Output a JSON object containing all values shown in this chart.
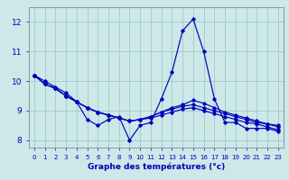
{
  "xlabel": "Graphe des températures (°c)",
  "background_color": "#cce8e8",
  "grid_color": "#aacccc",
  "line_color": "#0000bb",
  "hours": [
    0,
    1,
    2,
    3,
    4,
    5,
    6,
    7,
    8,
    9,
    10,
    11,
    12,
    13,
    14,
    15,
    16,
    17,
    18,
    19,
    20,
    21,
    22,
    23
  ],
  "series": [
    [
      10.2,
      10.0,
      9.8,
      9.6,
      9.3,
      8.7,
      8.5,
      8.7,
      8.8,
      8.0,
      8.5,
      8.6,
      9.4,
      10.3,
      11.7,
      12.1,
      11.0,
      9.4,
      8.6,
      8.6,
      8.4,
      8.4,
      8.4,
      8.3
    ],
    [
      10.2,
      9.9,
      9.75,
      9.5,
      9.3,
      9.1,
      8.95,
      8.85,
      8.75,
      8.65,
      8.7,
      8.8,
      8.95,
      9.1,
      9.2,
      9.35,
      9.25,
      9.1,
      8.95,
      8.85,
      8.75,
      8.65,
      8.55,
      8.5
    ],
    [
      10.2,
      9.9,
      9.75,
      9.5,
      9.3,
      9.1,
      8.95,
      8.85,
      8.75,
      8.65,
      8.7,
      8.8,
      8.95,
      9.05,
      9.15,
      9.2,
      9.1,
      9.0,
      8.9,
      8.8,
      8.7,
      8.6,
      8.55,
      8.45
    ],
    [
      10.2,
      9.9,
      9.75,
      9.5,
      9.3,
      9.1,
      8.95,
      8.85,
      8.75,
      8.65,
      8.7,
      8.75,
      8.85,
      8.95,
      9.05,
      9.1,
      9.0,
      8.9,
      8.8,
      8.7,
      8.6,
      8.55,
      8.45,
      8.35
    ]
  ],
  "ylim": [
    7.75,
    12.5
  ],
  "yticks": [
    8,
    9,
    10,
    11,
    12
  ],
  "xlim": [
    -0.5,
    23.5
  ]
}
